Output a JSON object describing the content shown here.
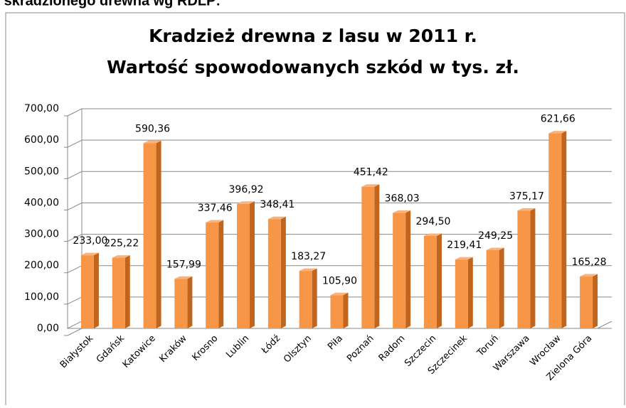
{
  "header": {
    "text": "ości skradzionego drewna wg RDLP:"
  },
  "chart_data": {
    "type": "bar",
    "title": "Kradzież drewna z lasu w 2011 r.",
    "subtitle": "Wartość spowodowanych szkód w tys. zł.",
    "categories": [
      "Białystok",
      "Gdańsk",
      "Katowice",
      "Kraków",
      "Krosno",
      "Lublin",
      "Łódź",
      "Olsztyn",
      "Piła",
      "Poznań",
      "Radom",
      "Szczecin",
      "Szczecinek",
      "Toruń",
      "Warszawa",
      "Wrocław",
      "Zielona Góra"
    ],
    "values": [
      233.0,
      225.22,
      590.36,
      157.99,
      337.46,
      396.92,
      348.41,
      183.27,
      105.9,
      451.42,
      368.03,
      294.5,
      219.41,
      249.25,
      375.17,
      621.66,
      165.28
    ],
    "value_labels": [
      "233,00",
      "225,22",
      "590,36",
      "157,99",
      "337,46",
      "396,92",
      "348,41",
      "183,27",
      "105,90",
      "451,42",
      "368,03",
      "294,50",
      "219,41",
      "249,25",
      "375,17",
      "621,66",
      "165,28"
    ],
    "color": "#f79646",
    "ylim": [
      0,
      700
    ],
    "yticks": [
      {
        "value": 0,
        "label": "0,00"
      },
      {
        "value": 100,
        "label": "100,00"
      },
      {
        "value": 200,
        "label": "200,00"
      },
      {
        "value": 300,
        "label": "300,00"
      },
      {
        "value": 400,
        "label": "400,00"
      },
      {
        "value": 500,
        "label": "500,00"
      },
      {
        "value": 600,
        "label": "600,00"
      },
      {
        "value": 700,
        "label": "700,00"
      }
    ],
    "grid": true
  }
}
